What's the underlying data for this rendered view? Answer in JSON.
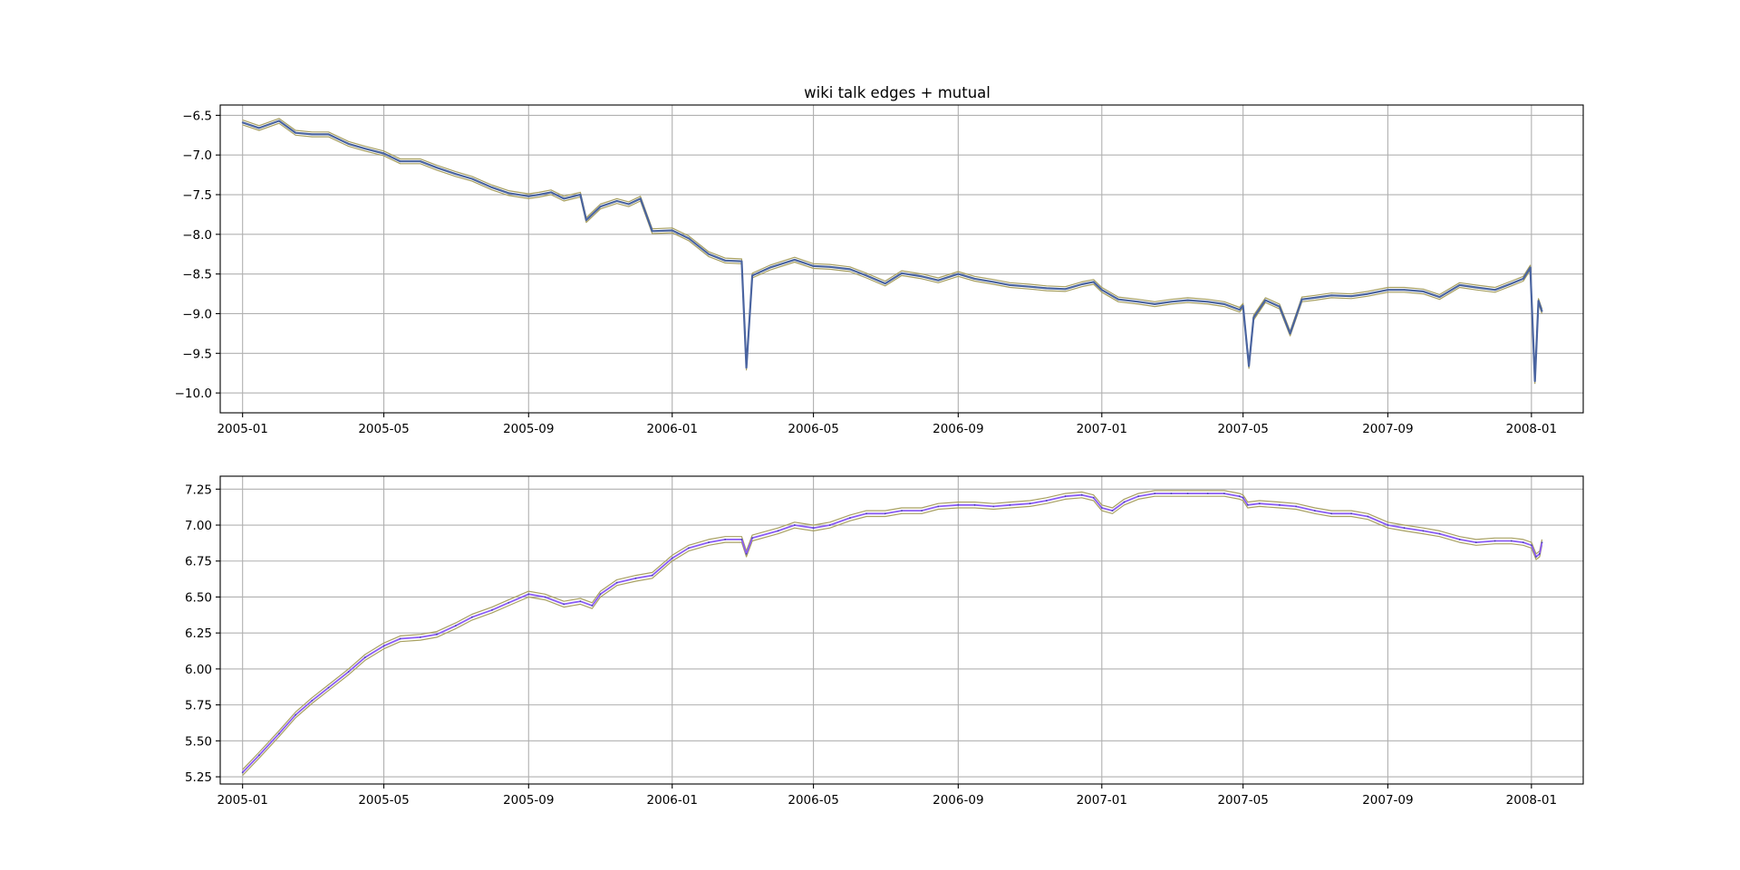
{
  "colors": {
    "main_line": "#4a64a0",
    "band_line": "#a8a060",
    "mean_line": "#8a5cf6",
    "mean_line_dark": "#4a4aa8",
    "grid": "#b0b0b0"
  },
  "chart_data": [
    {
      "type": "line",
      "title": "wiki talk edges + mutual",
      "xlabel": "",
      "ylabel": "",
      "x_range": [
        "2004-12-13",
        "2008-02-14"
      ],
      "xticks": [
        "2005-01",
        "2005-05",
        "2005-09",
        "2006-01",
        "2006-05",
        "2006-09",
        "2007-01",
        "2007-05",
        "2007-09",
        "2008-01"
      ],
      "ylim": [
        -10.25,
        -6.37
      ],
      "yticks": [
        -6.5,
        -7.0,
        -7.5,
        -8.0,
        -8.5,
        -9.0,
        -9.5,
        -10.0
      ],
      "ytick_labels": [
        "−6.5",
        "−7.0",
        "−7.5",
        "−8.0",
        "−8.5",
        "−9.0",
        "−9.5",
        "−10.0"
      ],
      "grid": true,
      "band_width": 0.03,
      "series": [
        {
          "x": [
            "2005-01-01",
            "2005-01-15",
            "2005-02-01",
            "2005-02-15",
            "2005-03-01",
            "2005-03-15",
            "2005-04-01",
            "2005-04-15",
            "2005-05-01",
            "2005-05-15",
            "2005-06-01",
            "2005-06-15",
            "2005-07-01",
            "2005-07-15",
            "2005-08-01",
            "2005-08-15",
            "2005-09-01",
            "2005-09-10",
            "2005-09-20",
            "2005-10-01",
            "2005-10-15",
            "2005-10-20",
            "2005-11-01",
            "2005-11-15",
            "2005-11-25",
            "2005-12-05",
            "2005-12-15",
            "2006-01-01",
            "2006-01-15",
            "2006-02-01",
            "2006-02-15",
            "2006-03-01",
            "2006-03-05",
            "2006-03-10",
            "2006-03-25",
            "2006-04-15",
            "2006-05-01",
            "2006-05-15",
            "2006-06-01",
            "2006-06-15",
            "2006-07-01",
            "2006-07-15",
            "2006-08-01",
            "2006-08-15",
            "2006-09-01",
            "2006-09-15",
            "2006-10-01",
            "2006-10-15",
            "2006-11-01",
            "2006-11-15",
            "2006-12-01",
            "2006-12-15",
            "2006-12-25",
            "2007-01-01",
            "2007-01-15",
            "2007-02-01",
            "2007-02-15",
            "2007-03-01",
            "2007-03-15",
            "2007-04-01",
            "2007-04-15",
            "2007-04-28",
            "2007-05-01",
            "2007-05-06",
            "2007-05-10",
            "2007-05-20",
            "2007-06-01",
            "2007-06-10",
            "2007-06-20",
            "2007-07-01",
            "2007-07-15",
            "2007-08-01",
            "2007-08-15",
            "2007-09-01",
            "2007-09-15",
            "2007-10-01",
            "2007-10-15",
            "2007-11-01",
            "2007-11-15",
            "2007-12-01",
            "2007-12-15",
            "2007-12-25",
            "2007-12-31",
            "2008-01-04",
            "2008-01-07",
            "2008-01-10"
          ],
          "y": [
            -6.59,
            -6.66,
            -6.57,
            -6.72,
            -6.74,
            -6.74,
            -6.86,
            -6.92,
            -6.98,
            -7.08,
            -7.08,
            -7.16,
            -7.24,
            -7.3,
            -7.41,
            -7.48,
            -7.52,
            -7.5,
            -7.47,
            -7.55,
            -7.5,
            -7.82,
            -7.65,
            -7.58,
            -7.62,
            -7.55,
            -7.96,
            -7.95,
            -8.05,
            -8.25,
            -8.33,
            -8.34,
            -9.68,
            -8.52,
            -8.42,
            -8.32,
            -8.4,
            -8.41,
            -8.44,
            -8.52,
            -8.62,
            -8.49,
            -8.53,
            -8.58,
            -8.5,
            -8.56,
            -8.6,
            -8.64,
            -8.66,
            -8.68,
            -8.69,
            -8.63,
            -8.6,
            -8.7,
            -8.82,
            -8.85,
            -8.88,
            -8.85,
            -8.83,
            -8.85,
            -8.88,
            -8.95,
            -8.9,
            -9.66,
            -9.05,
            -8.83,
            -8.91,
            -9.25,
            -8.82,
            -8.8,
            -8.77,
            -8.78,
            -8.75,
            -8.7,
            -8.7,
            -8.72,
            -8.79,
            -8.64,
            -8.67,
            -8.7,
            -8.62,
            -8.56,
            -8.42,
            -9.85,
            -8.84,
            -8.97
          ]
        }
      ]
    },
    {
      "type": "line",
      "title": "",
      "xlabel": "",
      "ylabel": "",
      "x_range": [
        "2004-12-13",
        "2008-02-14"
      ],
      "xticks": [
        "2005-01",
        "2005-05",
        "2005-09",
        "2006-01",
        "2006-05",
        "2006-09",
        "2007-01",
        "2007-05",
        "2007-09",
        "2008-01"
      ],
      "ylim": [
        5.2,
        7.34
      ],
      "yticks": [
        5.25,
        5.5,
        5.75,
        6.0,
        6.25,
        6.5,
        6.75,
        7.0,
        7.25
      ],
      "ytick_labels": [
        "5.25",
        "5.50",
        "5.75",
        "6.00",
        "6.25",
        "6.50",
        "6.75",
        "7.00",
        "7.25"
      ],
      "grid": true,
      "band_width": 0.02,
      "series": [
        {
          "x": [
            "2005-01-01",
            "2005-01-15",
            "2005-02-01",
            "2005-02-15",
            "2005-03-01",
            "2005-03-15",
            "2005-04-01",
            "2005-04-15",
            "2005-05-01",
            "2005-05-15",
            "2005-06-01",
            "2005-06-15",
            "2005-07-01",
            "2005-07-15",
            "2005-08-01",
            "2005-08-15",
            "2005-09-01",
            "2005-09-15",
            "2005-10-01",
            "2005-10-15",
            "2005-10-25",
            "2005-11-01",
            "2005-11-15",
            "2005-12-01",
            "2005-12-15",
            "2006-01-01",
            "2006-01-15",
            "2006-02-01",
            "2006-02-15",
            "2006-03-01",
            "2006-03-05",
            "2006-03-10",
            "2006-04-01",
            "2006-04-15",
            "2006-05-01",
            "2006-05-15",
            "2006-06-01",
            "2006-06-15",
            "2006-07-01",
            "2006-07-15",
            "2006-08-01",
            "2006-08-15",
            "2006-09-01",
            "2006-09-15",
            "2006-10-01",
            "2006-10-15",
            "2006-11-01",
            "2006-11-15",
            "2006-12-01",
            "2006-12-15",
            "2006-12-25",
            "2007-01-01",
            "2007-01-10",
            "2007-01-20",
            "2007-02-01",
            "2007-02-15",
            "2007-03-01",
            "2007-03-15",
            "2007-04-01",
            "2007-04-15",
            "2007-04-28",
            "2007-05-01",
            "2007-05-05",
            "2007-05-15",
            "2007-06-01",
            "2007-06-15",
            "2007-07-01",
            "2007-07-15",
            "2007-08-01",
            "2007-08-15",
            "2007-09-01",
            "2007-09-15",
            "2007-10-01",
            "2007-10-15",
            "2007-11-01",
            "2007-11-15",
            "2007-12-01",
            "2007-12-15",
            "2007-12-25",
            "2008-01-01",
            "2008-01-05",
            "2008-01-08",
            "2008-01-10"
          ],
          "y": [
            5.28,
            5.4,
            5.55,
            5.68,
            5.78,
            5.87,
            5.98,
            6.08,
            6.16,
            6.21,
            6.22,
            6.24,
            6.3,
            6.36,
            6.41,
            6.46,
            6.52,
            6.5,
            6.45,
            6.47,
            6.44,
            6.52,
            6.6,
            6.63,
            6.65,
            6.77,
            6.84,
            6.88,
            6.9,
            6.9,
            6.8,
            6.91,
            6.96,
            7.0,
            6.98,
            7.0,
            7.05,
            7.08,
            7.08,
            7.1,
            7.1,
            7.13,
            7.14,
            7.14,
            7.13,
            7.14,
            7.15,
            7.17,
            7.2,
            7.21,
            7.19,
            7.12,
            7.1,
            7.16,
            7.2,
            7.22,
            7.22,
            7.22,
            7.22,
            7.22,
            7.2,
            7.19,
            7.14,
            7.15,
            7.14,
            7.13,
            7.1,
            7.08,
            7.08,
            7.06,
            7.0,
            6.98,
            6.96,
            6.94,
            6.9,
            6.88,
            6.89,
            6.89,
            6.88,
            6.86,
            6.78,
            6.8,
            6.88
          ]
        }
      ]
    }
  ]
}
